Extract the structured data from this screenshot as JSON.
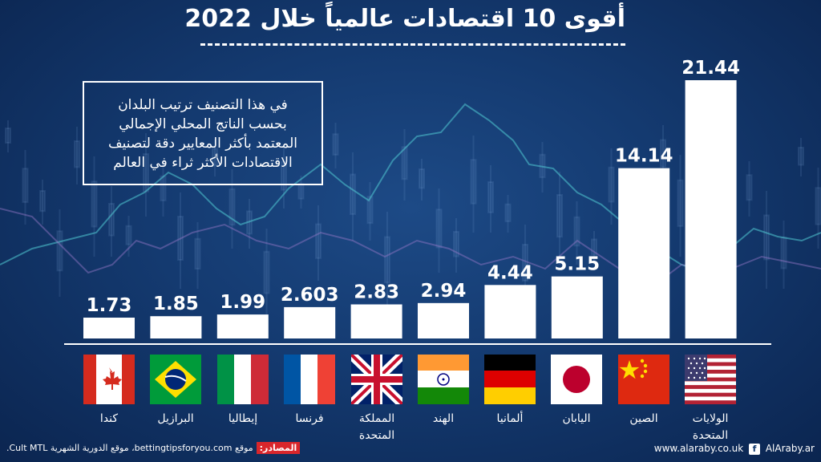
{
  "title": "أقوى 10 اقتصادات عالمياً خلال 2022",
  "note_lines": [
    "في هذا التصنيف ترتيب البلدان",
    "بحسب الناتج المحلي الإجمالي",
    "المعتمد بأكثر المعايير دقة لتصنيف",
    "الاقتصادات الأكثر ثراء في العالم"
  ],
  "chart_data": {
    "type": "bar",
    "categories": [
      "كندا",
      "البرازيل",
      "إيطاليا",
      "فرنسا",
      "المملكة المتحدة",
      "الهند",
      "ألمانيا",
      "اليابان",
      "الصين",
      "الولايات المتحدة"
    ],
    "values": [
      1.73,
      1.85,
      1.99,
      2.603,
      2.83,
      2.94,
      4.44,
      5.15,
      14.14,
      21.44
    ],
    "value_labels": [
      "1.73",
      "1.85",
      "1.99",
      "2.603",
      "2.83",
      "2.94",
      "4.44",
      "5.15",
      "14.14",
      "21.44"
    ],
    "title": "أقوى 10 اقتصادات عالمياً خلال 2022",
    "xlabel": "",
    "ylabel": "",
    "ylim": [
      0,
      21.44
    ],
    "grid": false,
    "bar_color": "#ffffff"
  },
  "countries": [
    {
      "label": "كندا",
      "flag": "canada-flag-icon"
    },
    {
      "label": "البرازيل",
      "flag": "brazil-flag-icon"
    },
    {
      "label": "إيطاليا",
      "flag": "italy-flag-icon"
    },
    {
      "label": "فرنسا",
      "flag": "france-flag-icon"
    },
    {
      "label": "المملكة المتحدة",
      "flag": "uk-flag-icon"
    },
    {
      "label": "الهند",
      "flag": "india-flag-icon"
    },
    {
      "label": "ألمانيا",
      "flag": "germany-flag-icon"
    },
    {
      "label": "اليابان",
      "flag": "japan-flag-icon"
    },
    {
      "label": "الصين",
      "flag": "china-flag-icon"
    },
    {
      "label": "الولايات المتحدة",
      "flag": "usa-flag-icon"
    }
  ],
  "footer": {
    "source_label": "المصادر:",
    "source_text": "موقع bettingtipsforyou.com، موقع الدورية الشهرية Cult MTL.",
    "site": "www.alaraby.co.uk",
    "handle": "AlAraby.ar"
  },
  "colors": {
    "background": "#143a70",
    "accent_red": "#d9262b",
    "text": "#ffffff"
  }
}
